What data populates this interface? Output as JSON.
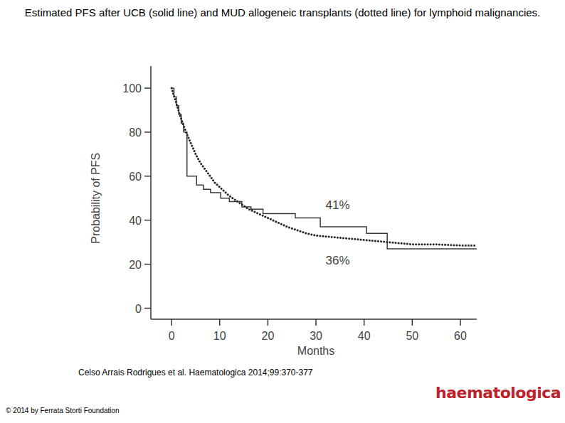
{
  "chart_data": {
    "type": "step",
    "title": "Estimated PFS after UCB (solid line) and MUD allogeneic transplants (dotted line) for lymphoid malignancies.",
    "x_label": "Months",
    "y_label": "Probability of PFS",
    "xlim": [
      -4.3,
      63.4
    ],
    "ylim": [
      -5,
      110
    ],
    "xticks": [
      0,
      10,
      20,
      30,
      40,
      50,
      60
    ],
    "yticks": [
      0,
      20,
      40,
      60,
      80,
      100
    ],
    "grid": false,
    "series": [
      {
        "name": "UCB",
        "color": "#3a3a3a",
        "line_style": "solid",
        "type": "step",
        "x": [
          0,
          0.5,
          1,
          1.5,
          2,
          2.5,
          3.2,
          5.2,
          6.6,
          8.1,
          10.2,
          12,
          14.6,
          16.5,
          19,
          25.7,
          30.9,
          40.5,
          44.8,
          63.4
        ],
        "values": [
          100,
          96,
          92,
          88,
          84,
          80,
          60,
          56,
          54,
          52.5,
          50,
          48.5,
          46,
          45,
          43,
          41,
          37,
          34,
          27,
          27
        ]
      },
      {
        "name": "MUD",
        "color": "#2a2a2a",
        "line_style": "dotted",
        "type": "line",
        "x": [
          0,
          1,
          2,
          3,
          4,
          5,
          6,
          7,
          8,
          9,
          10,
          12,
          14,
          16,
          18,
          20,
          22,
          24,
          26,
          28,
          30,
          35,
          40,
          45,
          50,
          55,
          60,
          63.4
        ],
        "values": [
          100,
          93,
          86,
          80,
          75,
          70,
          66,
          63,
          60,
          57,
          55,
          51,
          48,
          45,
          43,
          41,
          39,
          37,
          35.5,
          34,
          33,
          32,
          31,
          30,
          29,
          29,
          28.5,
          28.5
        ]
      }
    ],
    "annotations": [
      {
        "text": "41%",
        "x": 32,
        "y": 45
      },
      {
        "text": "36%",
        "x": 32,
        "y": 20
      }
    ]
  },
  "citation": "Celso Arrais Rodrigues et al. Haematologica 2014;99:370-377",
  "copyright": "© 2014 by Ferrata Storti Foundation",
  "logo": "haematologica"
}
